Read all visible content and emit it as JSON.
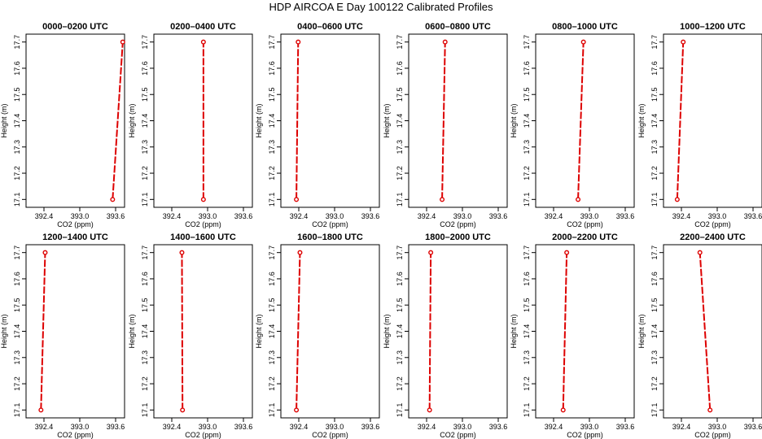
{
  "figure": {
    "title": "HDP AIRCOA E  Day 100122  Calibrated Profiles"
  },
  "chart_data": [
    {
      "type": "line",
      "title": "0000–0200 UTC",
      "xlabel": "CO2 (ppm)",
      "ylabel": "Height (m)",
      "xlim": [
        392.1,
        393.75
      ],
      "ylim": [
        17.07,
        17.73
      ],
      "xticks": [
        392.4,
        393.0,
        393.6
      ],
      "yticks": [
        17.1,
        17.2,
        17.3,
        17.4,
        17.5,
        17.6,
        17.7
      ],
      "grid": false,
      "x": [
        393.55,
        393.72
      ],
      "y": [
        17.1,
        17.7
      ]
    },
    {
      "type": "line",
      "title": "0200–0400 UTC",
      "xlabel": "CO2 (ppm)",
      "ylabel": "Height (m)",
      "xlim": [
        392.1,
        393.75
      ],
      "ylim": [
        17.07,
        17.73
      ],
      "xticks": [
        392.4,
        393.0,
        393.6
      ],
      "yticks": [
        17.1,
        17.2,
        17.3,
        17.4,
        17.5,
        17.6,
        17.7
      ],
      "grid": false,
      "x": [
        392.93,
        392.93
      ],
      "y": [
        17.1,
        17.7
      ]
    },
    {
      "type": "line",
      "title": "0400–0600 UTC",
      "xlabel": "CO2 (ppm)",
      "ylabel": "Height (m)",
      "xlim": [
        392.1,
        393.75
      ],
      "ylim": [
        17.07,
        17.73
      ],
      "xticks": [
        392.4,
        393.0,
        393.6
      ],
      "yticks": [
        17.1,
        17.2,
        17.3,
        17.4,
        17.5,
        17.6,
        17.7
      ],
      "grid": false,
      "x": [
        392.36,
        392.39
      ],
      "y": [
        17.1,
        17.7
      ]
    },
    {
      "type": "line",
      "title": "0600–0800 UTC",
      "xlabel": "CO2 (ppm)",
      "ylabel": "Height (m)",
      "xlim": [
        392.1,
        393.75
      ],
      "ylim": [
        17.07,
        17.73
      ],
      "xticks": [
        392.4,
        393.0,
        393.6
      ],
      "yticks": [
        17.1,
        17.2,
        17.3,
        17.4,
        17.5,
        17.6,
        17.7
      ],
      "grid": false,
      "x": [
        392.66,
        392.71
      ],
      "y": [
        17.1,
        17.7
      ]
    },
    {
      "type": "line",
      "title": "0800–1000 UTC",
      "xlabel": "CO2 (ppm)",
      "ylabel": "Height (m)",
      "xlim": [
        392.1,
        393.75
      ],
      "ylim": [
        17.07,
        17.73
      ],
      "xticks": [
        392.4,
        393.0,
        393.6
      ],
      "yticks": [
        17.1,
        17.2,
        17.3,
        17.4,
        17.5,
        17.6,
        17.7
      ],
      "grid": false,
      "x": [
        392.81,
        392.9
      ],
      "y": [
        17.1,
        17.7
      ]
    },
    {
      "type": "line",
      "title": "1000–1200 UTC",
      "xlabel": "CO2 (ppm)",
      "ylabel": "Height (m)",
      "xlim": [
        392.1,
        393.75
      ],
      "ylim": [
        17.07,
        17.73
      ],
      "xticks": [
        392.4,
        393.0,
        393.6
      ],
      "yticks": [
        17.1,
        17.2,
        17.3,
        17.4,
        17.5,
        17.6,
        17.7
      ],
      "grid": false,
      "x": [
        392.33,
        392.43
      ],
      "y": [
        17.1,
        17.7
      ]
    },
    {
      "type": "line",
      "title": "1200–1400 UTC",
      "xlabel": "CO2 (ppm)",
      "ylabel": "Height (m)",
      "xlim": [
        392.1,
        393.75
      ],
      "ylim": [
        17.07,
        17.73
      ],
      "xticks": [
        392.4,
        393.0,
        393.6
      ],
      "yticks": [
        17.1,
        17.2,
        17.3,
        17.4,
        17.5,
        17.6,
        17.7
      ],
      "grid": false,
      "x": [
        392.35,
        392.42
      ],
      "y": [
        17.1,
        17.7
      ]
    },
    {
      "type": "line",
      "title": "1400–1600 UTC",
      "xlabel": "CO2 (ppm)",
      "ylabel": "Height (m)",
      "xlim": [
        392.1,
        393.75
      ],
      "ylim": [
        17.07,
        17.73
      ],
      "xticks": [
        392.4,
        393.0,
        393.6
      ],
      "yticks": [
        17.1,
        17.2,
        17.3,
        17.4,
        17.5,
        17.6,
        17.7
      ],
      "grid": false,
      "x": [
        392.58,
        392.57
      ],
      "y": [
        17.1,
        17.7
      ]
    },
    {
      "type": "line",
      "title": "1600–1800 UTC",
      "xlabel": "CO2 (ppm)",
      "ylabel": "Height (m)",
      "xlim": [
        392.1,
        393.75
      ],
      "ylim": [
        17.07,
        17.73
      ],
      "xticks": [
        392.4,
        393.0,
        393.6
      ],
      "yticks": [
        17.1,
        17.2,
        17.3,
        17.4,
        17.5,
        17.6,
        17.7
      ],
      "grid": false,
      "x": [
        392.36,
        392.42
      ],
      "y": [
        17.1,
        17.7
      ]
    },
    {
      "type": "line",
      "title": "1800–2000 UTC",
      "xlabel": "CO2 (ppm)",
      "ylabel": "Height (m)",
      "xlim": [
        392.1,
        393.75
      ],
      "ylim": [
        17.07,
        17.73
      ],
      "xticks": [
        392.4,
        393.0,
        393.6
      ],
      "yticks": [
        17.1,
        17.2,
        17.3,
        17.4,
        17.5,
        17.6,
        17.7
      ],
      "grid": false,
      "x": [
        392.45,
        392.47
      ],
      "y": [
        17.1,
        17.7
      ]
    },
    {
      "type": "line",
      "title": "2000–2200 UTC",
      "xlabel": "CO2 (ppm)",
      "ylabel": "Height (m)",
      "xlim": [
        392.1,
        393.75
      ],
      "ylim": [
        17.07,
        17.73
      ],
      "xticks": [
        392.4,
        393.0,
        393.6
      ],
      "yticks": [
        17.1,
        17.2,
        17.3,
        17.4,
        17.5,
        17.6,
        17.7
      ],
      "grid": false,
      "x": [
        392.56,
        392.62
      ],
      "y": [
        17.1,
        17.7
      ]
    },
    {
      "type": "line",
      "title": "2200–2400 UTC",
      "xlabel": "CO2 (ppm)",
      "ylabel": "Height (m)",
      "xlim": [
        392.1,
        393.75
      ],
      "ylim": [
        17.07,
        17.73
      ],
      "xticks": [
        392.4,
        393.0,
        393.6
      ],
      "yticks": [
        17.1,
        17.2,
        17.3,
        17.4,
        17.5,
        17.6,
        17.7
      ],
      "grid": false,
      "x": [
        392.88,
        392.71
      ],
      "y": [
        17.1,
        17.7
      ]
    }
  ],
  "colors": {
    "series": "#dd0000",
    "axis": "#000000"
  }
}
